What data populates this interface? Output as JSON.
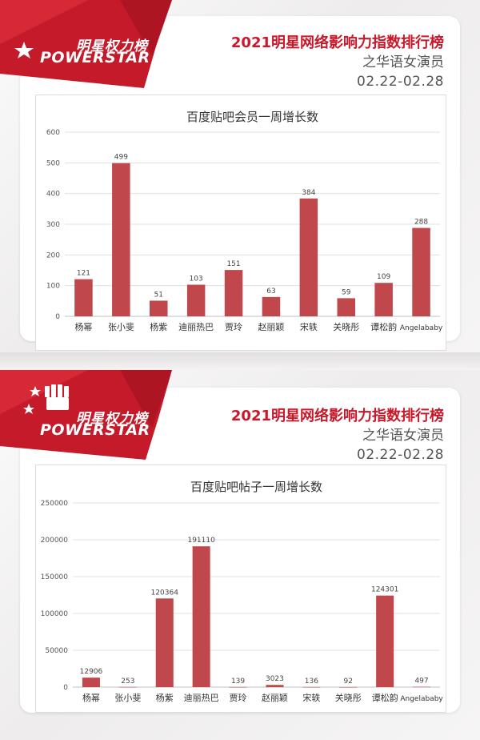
{
  "panels": [
    {
      "logo": {
        "cn": "明星权力榜",
        "en": "POWERSTAR"
      },
      "heading": {
        "title": "2021明星网络影响力指数排行榜",
        "subtitle": "之华语女演员",
        "date": "02.22-02.28"
      }
    },
    {
      "logo": {
        "cn": "明星权力榜",
        "en": "POWERSTAR"
      },
      "heading": {
        "title": "2021明星网络影响力指数排行榜",
        "subtitle": "之华语女演员",
        "date": "02.22-02.28"
      }
    }
  ],
  "colors": {
    "bar": "#c0474b",
    "brand_red": "#c8182a",
    "grid": "#e0e0e0",
    "text": "#333333"
  },
  "chart_data": [
    {
      "type": "bar",
      "title": "百度贴吧会员一周增长数",
      "categories": [
        "杨幂",
        "张小斐",
        "杨紫",
        "迪丽热巴",
        "贾玲",
        "赵丽颖",
        "宋轶",
        "关晓彤",
        "谭松韵",
        "Angelababy"
      ],
      "values": [
        121,
        499,
        51,
        103,
        151,
        63,
        384,
        59,
        109,
        288
      ],
      "ylim": [
        0,
        600
      ],
      "yticks": [
        0,
        100,
        200,
        300,
        400,
        500,
        600
      ],
      "grid": true,
      "xlabel": "",
      "ylabel": ""
    },
    {
      "type": "bar",
      "title": "百度贴吧帖子一周增长数",
      "categories": [
        "杨幂",
        "张小斐",
        "杨紫",
        "迪丽热巴",
        "贾玲",
        "赵丽颖",
        "宋轶",
        "关晓彤",
        "谭松韵",
        "Angelababy"
      ],
      "values": [
        12906,
        253,
        120364,
        191110,
        139,
        3023,
        136,
        92,
        124301,
        497
      ],
      "ylim": [
        0,
        250000
      ],
      "yticks": [
        0,
        50000,
        100000,
        150000,
        200000,
        250000
      ],
      "grid": true,
      "xlabel": "",
      "ylabel": ""
    }
  ]
}
